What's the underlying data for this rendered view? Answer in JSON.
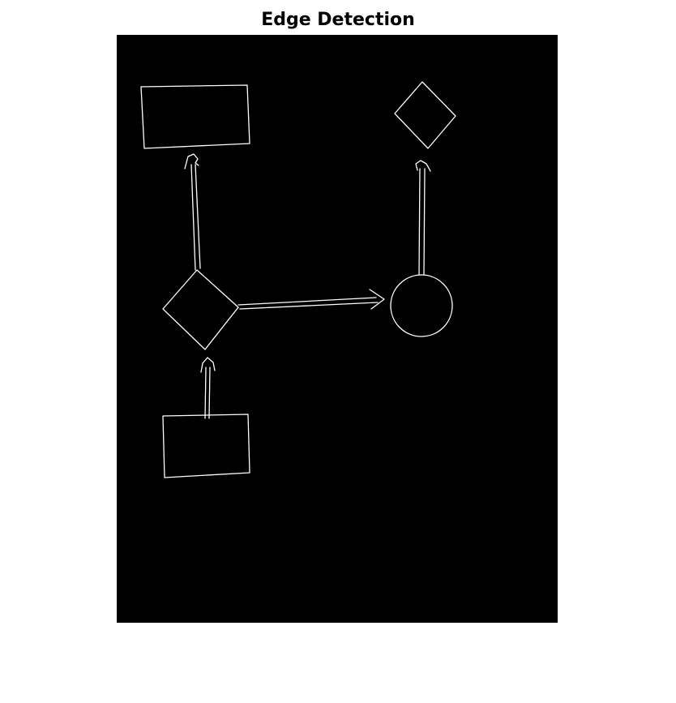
{
  "figure": {
    "title": "Edge Detection",
    "image_background": "#000000",
    "edge_color": "#ffffff"
  }
}
